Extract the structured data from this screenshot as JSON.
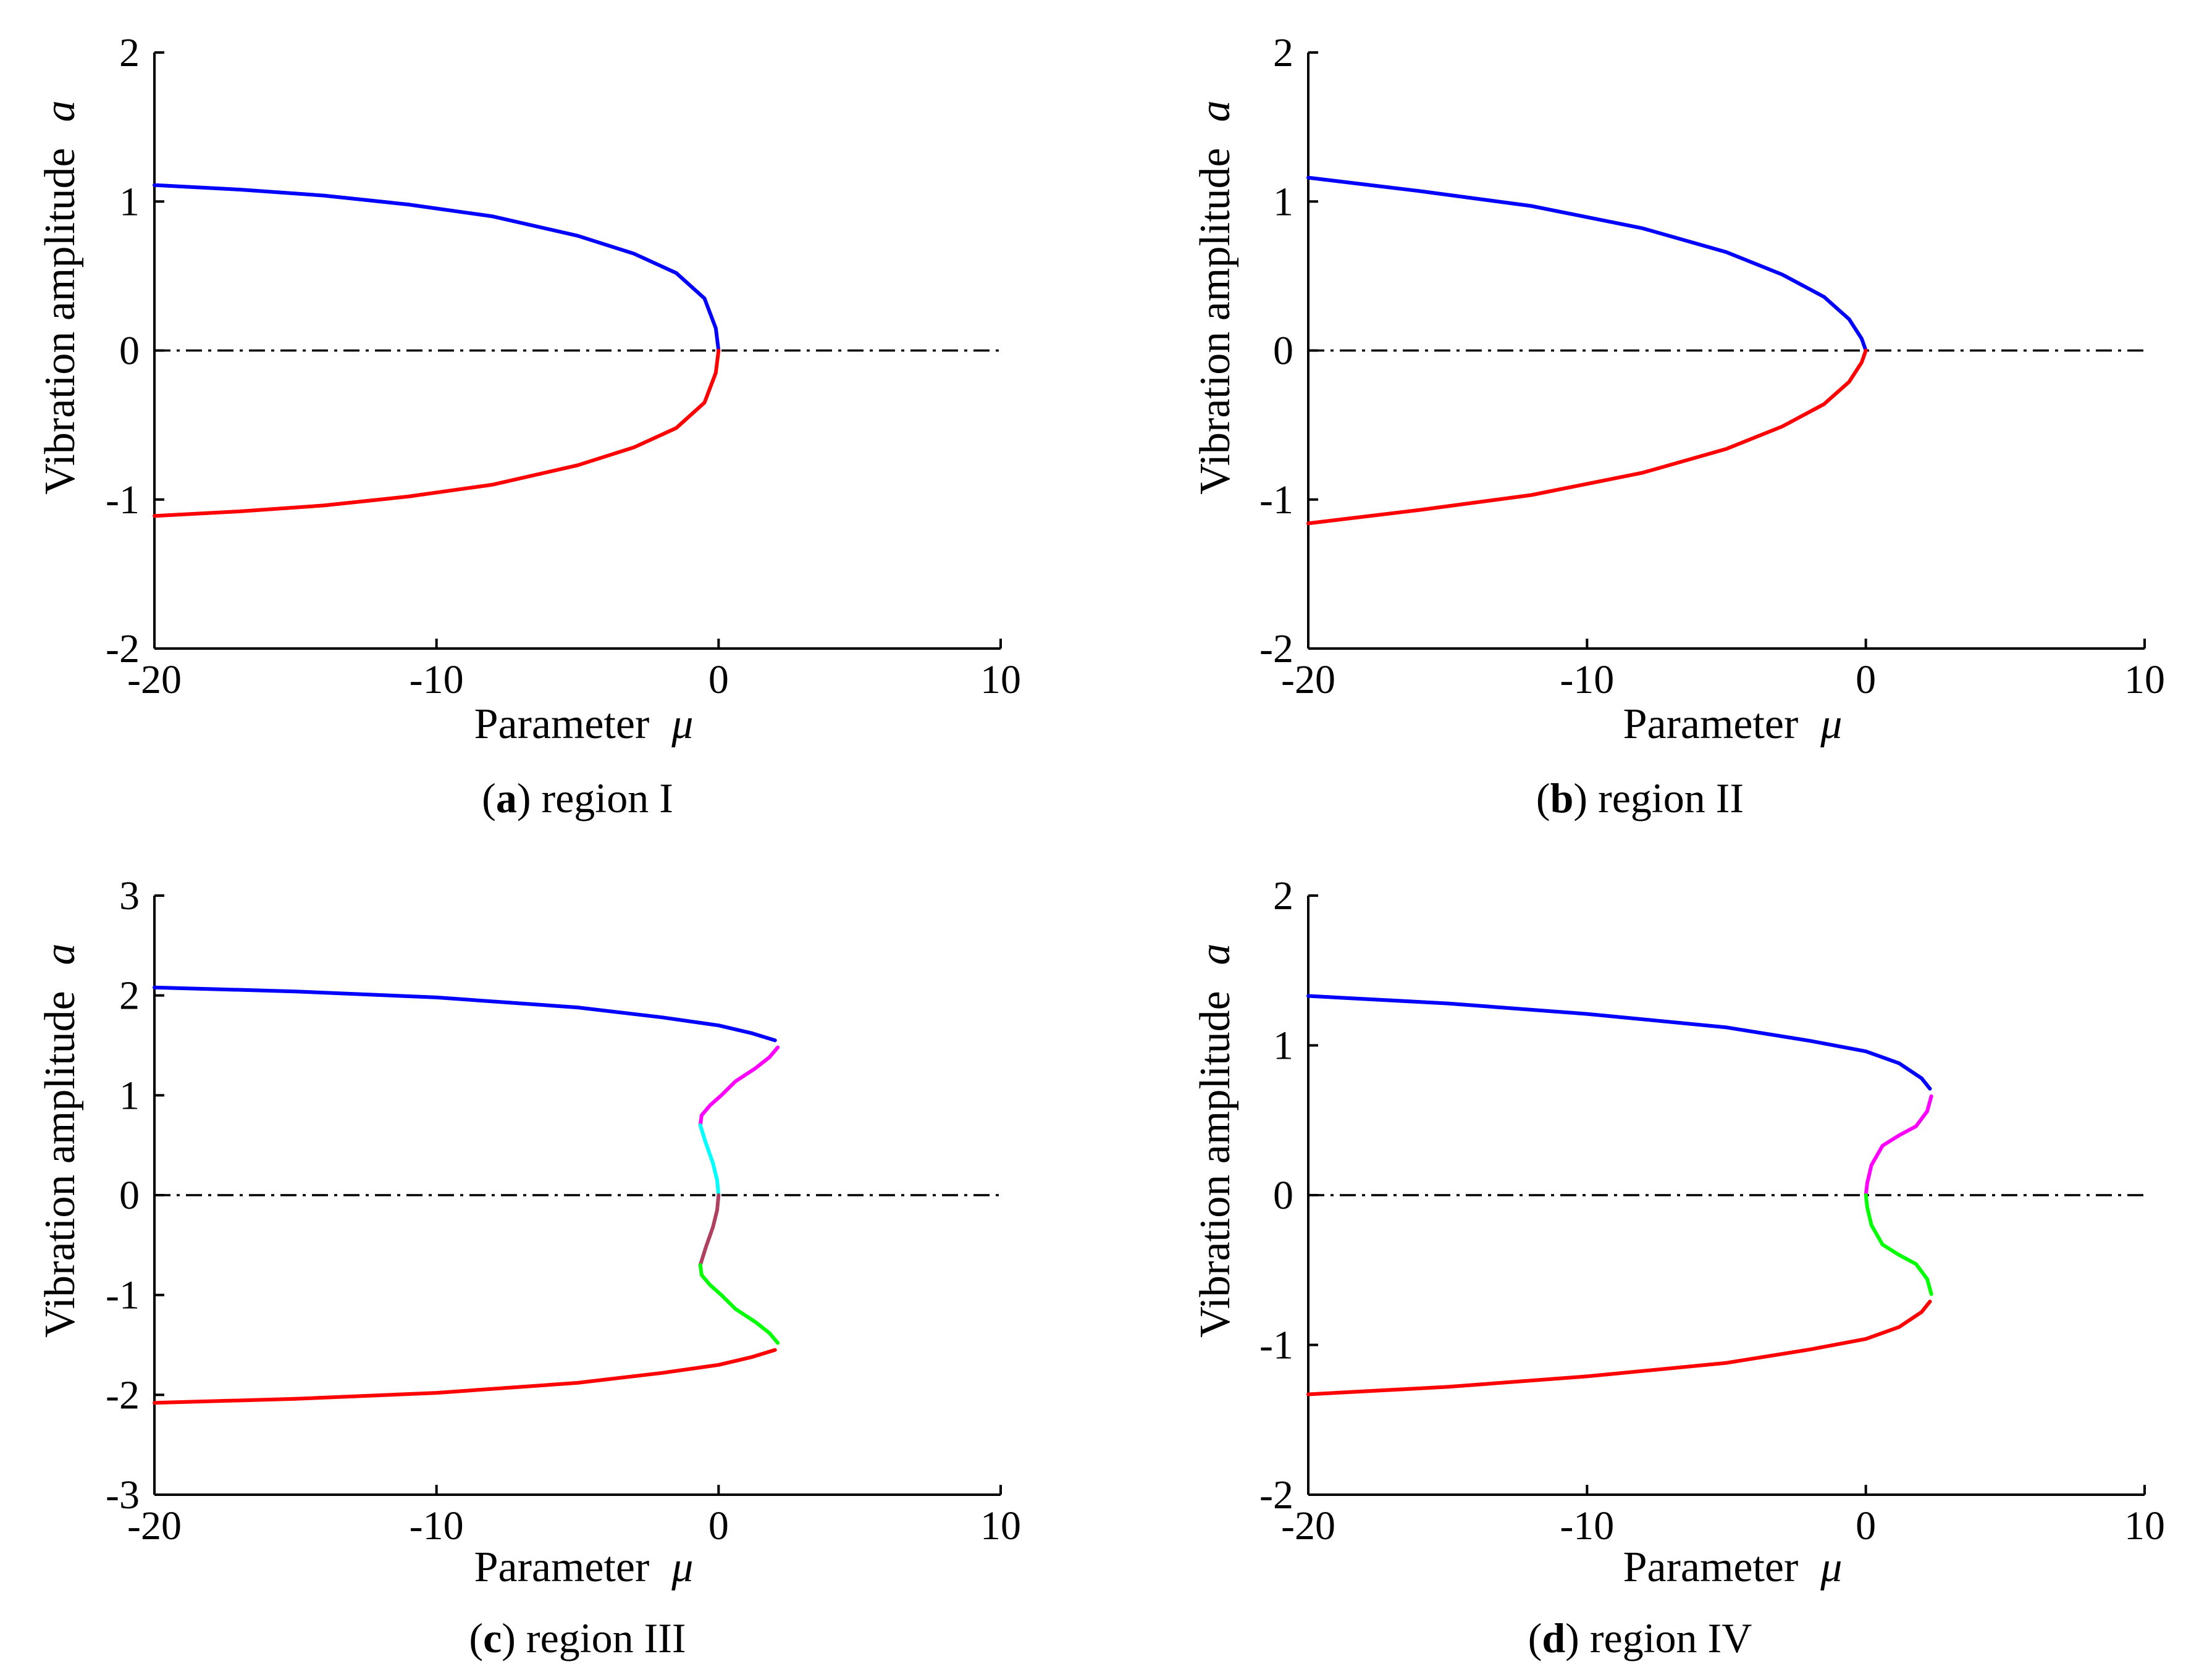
{
  "chart_data": [
    {
      "type": "line",
      "panel_letter": "a",
      "caption": " region I",
      "xlabel": "Parameter",
      "xlabel_symbol": "μ",
      "ylabel": "Vibration amplitude",
      "ylabel_symbol": "a",
      "xlim": [
        -20,
        10
      ],
      "ylim": [
        -2,
        2
      ],
      "xticks": [
        "-20",
        "-10",
        "0",
        "10"
      ],
      "yticks": [
        "-2",
        "-1",
        "0",
        "1",
        "2"
      ],
      "grid": false,
      "legend": "none",
      "reference_line": {
        "y": 0,
        "style": "dash-dot",
        "color": "#000000"
      },
      "series": [
        {
          "name": "upper branch",
          "color": "#0000ff",
          "x": [
            -20,
            -17,
            -14,
            -11,
            -8,
            -5,
            -3,
            -1.5,
            -0.5,
            -0.1,
            0
          ],
          "y": [
            1.11,
            1.08,
            1.04,
            0.98,
            0.9,
            0.77,
            0.65,
            0.52,
            0.35,
            0.15,
            0
          ]
        },
        {
          "name": "lower branch",
          "color": "#ff0000",
          "x": [
            -20,
            -17,
            -14,
            -11,
            -8,
            -5,
            -3,
            -1.5,
            -0.5,
            -0.1,
            0
          ],
          "y": [
            -1.11,
            -1.08,
            -1.04,
            -0.98,
            -0.9,
            -0.77,
            -0.65,
            -0.52,
            -0.35,
            -0.15,
            0
          ]
        }
      ]
    },
    {
      "type": "line",
      "panel_letter": "b",
      "caption": " region II",
      "xlabel": "Parameter",
      "xlabel_symbol": "μ",
      "ylabel": "Vibration amplitude",
      "ylabel_symbol": "a",
      "xlim": [
        -20,
        10
      ],
      "ylim": [
        -2,
        2
      ],
      "xticks": [
        "-20",
        "-10",
        "0",
        "10"
      ],
      "yticks": [
        "-2",
        "-1",
        "0",
        "1",
        "2"
      ],
      "grid": false,
      "legend": "none",
      "reference_line": {
        "y": 0,
        "style": "dash-dot",
        "color": "#000000"
      },
      "series": [
        {
          "name": "upper branch",
          "color": "#0000ff",
          "x": [
            -20,
            -16,
            -12,
            -8,
            -5,
            -3,
            -1.5,
            -0.6,
            -0.15,
            0
          ],
          "y": [
            1.16,
            1.07,
            0.97,
            0.82,
            0.66,
            0.51,
            0.36,
            0.21,
            0.08,
            0
          ]
        },
        {
          "name": "lower branch",
          "color": "#ff0000",
          "x": [
            -20,
            -16,
            -12,
            -8,
            -5,
            -3,
            -1.5,
            -0.6,
            -0.15,
            0
          ],
          "y": [
            -1.16,
            -1.07,
            -0.97,
            -0.82,
            -0.66,
            -0.51,
            -0.36,
            -0.21,
            -0.08,
            0
          ]
        }
      ]
    },
    {
      "type": "line",
      "panel_letter": "c",
      "caption": " region III",
      "xlabel": "Parameter",
      "xlabel_symbol": "μ",
      "ylabel": "Vibration amplitude",
      "ylabel_symbol": "a",
      "xlim": [
        -20,
        10
      ],
      "ylim": [
        -3,
        3
      ],
      "xticks": [
        "-20",
        "-10",
        "0",
        "10"
      ],
      "yticks": [
        "-3",
        "-2",
        "-1",
        "0",
        "1",
        "2",
        "3"
      ],
      "grid": false,
      "legend": "none",
      "reference_line": {
        "y": 0,
        "style": "dash-dot",
        "color": "#000000"
      },
      "series": [
        {
          "name": "upper stable branch",
          "color": "#0000ff",
          "x": [
            -20,
            -15,
            -10,
            -5,
            -2,
            0,
            1.2,
            2.0
          ],
          "y": [
            2.08,
            2.04,
            1.98,
            1.88,
            1.78,
            1.7,
            1.62,
            1.55
          ]
        },
        {
          "name": "upper unstable segment",
          "color": "#ff00ff",
          "x": [
            2.1,
            1.8,
            1.3,
            0.6,
            0.1,
            -0.3,
            -0.6,
            -0.65
          ],
          "y": [
            1.48,
            1.38,
            1.27,
            1.14,
            1.0,
            0.9,
            0.8,
            0.7
          ]
        },
        {
          "name": "upper inner segment",
          "color": "#00ffff",
          "x": [
            -0.65,
            -0.45,
            -0.2,
            -0.05,
            0
          ],
          "y": [
            0.7,
            0.52,
            0.32,
            0.15,
            0
          ]
        },
        {
          "name": "lower inner segment",
          "color": "#b04060",
          "x": [
            0,
            -0.05,
            -0.2,
            -0.45,
            -0.65
          ],
          "y": [
            0,
            -0.15,
            -0.32,
            -0.52,
            -0.7
          ]
        },
        {
          "name": "lower unstable segment",
          "color": "#00ff00",
          "x": [
            -0.65,
            -0.6,
            -0.3,
            0.1,
            0.6,
            1.3,
            1.8,
            2.1
          ],
          "y": [
            -0.7,
            -0.8,
            -0.9,
            -1.0,
            -1.14,
            -1.27,
            -1.38,
            -1.48
          ]
        },
        {
          "name": "lower stable branch",
          "color": "#ff0000",
          "x": [
            -20,
            -15,
            -10,
            -5,
            -2,
            0,
            1.2,
            2.0
          ],
          "y": [
            -2.08,
            -2.04,
            -1.98,
            -1.88,
            -1.78,
            -1.7,
            -1.62,
            -1.55
          ]
        }
      ]
    },
    {
      "type": "line",
      "panel_letter": "d",
      "caption": " region IV",
      "xlabel": "Parameter",
      "xlabel_symbol": "μ",
      "ylabel": "Vibration amplitude",
      "ylabel_symbol": "a",
      "xlim": [
        -20,
        10
      ],
      "ylim": [
        -2,
        2
      ],
      "xticks": [
        "-20",
        "-10",
        "0",
        "10"
      ],
      "yticks": [
        "-2",
        "-1",
        "0",
        "1",
        "2"
      ],
      "grid": false,
      "legend": "none",
      "reference_line": {
        "y": 0,
        "style": "dash-dot",
        "color": "#000000"
      },
      "series": [
        {
          "name": "upper stable branch",
          "color": "#0000ff",
          "x": [
            -20,
            -15,
            -10,
            -5,
            -2,
            0,
            1.2,
            2.0,
            2.3
          ],
          "y": [
            1.33,
            1.28,
            1.21,
            1.12,
            1.03,
            0.96,
            0.88,
            0.78,
            0.71
          ]
        },
        {
          "name": "upper unstable segment",
          "color": "#ff00ff",
          "x": [
            2.35,
            2.2,
            1.8,
            1.2,
            0.6,
            0.2,
            0.05,
            0
          ],
          "y": [
            0.66,
            0.56,
            0.46,
            0.4,
            0.33,
            0.2,
            0.08,
            0
          ]
        },
        {
          "name": "lower unstable segment",
          "color": "#00ff00",
          "x": [
            0,
            0.05,
            0.2,
            0.6,
            1.2,
            1.8,
            2.2,
            2.35
          ],
          "y": [
            0,
            -0.08,
            -0.2,
            -0.33,
            -0.4,
            -0.46,
            -0.56,
            -0.66
          ]
        },
        {
          "name": "lower stable branch",
          "color": "#ff0000",
          "x": [
            -20,
            -15,
            -10,
            -5,
            -2,
            0,
            1.2,
            2.0,
            2.3
          ],
          "y": [
            -1.33,
            -1.28,
            -1.21,
            -1.12,
            -1.03,
            -0.96,
            -0.88,
            -0.78,
            -0.71
          ]
        }
      ]
    }
  ]
}
